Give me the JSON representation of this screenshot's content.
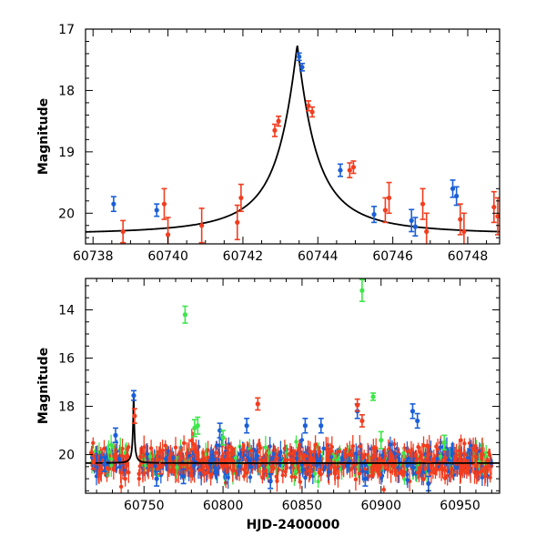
{
  "chart_data": [
    {
      "type": "scatter",
      "panel": "top",
      "title": "",
      "xlabel": "",
      "ylabel": "Magnitude",
      "xlim": [
        60737.8,
        60748.85
      ],
      "ylim": [
        20.5,
        17.0
      ],
      "y_inverted": true,
      "xticks": [
        60738,
        60740,
        60742,
        60744,
        60746,
        60748
      ],
      "xtick_labels": [
        "60738",
        "60740",
        "60742",
        "60744",
        "60746",
        "60748"
      ],
      "yticks": [
        17,
        18,
        19,
        20
      ],
      "ytick_labels": [
        "17",
        "18",
        "19",
        "20"
      ],
      "model_curve": {
        "name": "microlensing model",
        "color": "#000000",
        "t0": 60743.45,
        "peak_mag": 17.25,
        "base_mag": 20.35,
        "width": 0.55
      },
      "series": [
        {
          "name": "blue",
          "color": "#1a5fd8",
          "points": [
            {
              "x": 60738.55,
              "y": 19.85,
              "err": 0.12
            },
            {
              "x": 60739.7,
              "y": 19.95,
              "err": 0.1
            },
            {
              "x": 60743.5,
              "y": 17.45,
              "err": 0.06
            },
            {
              "x": 60743.58,
              "y": 17.62,
              "err": 0.06
            },
            {
              "x": 60744.6,
              "y": 19.3,
              "err": 0.1
            },
            {
              "x": 60745.5,
              "y": 20.02,
              "err": 0.13
            },
            {
              "x": 60746.5,
              "y": 20.12,
              "err": 0.18
            },
            {
              "x": 60746.6,
              "y": 20.22,
              "err": 0.15
            },
            {
              "x": 60747.6,
              "y": 19.6,
              "err": 0.14
            },
            {
              "x": 60747.7,
              "y": 19.72,
              "err": 0.15
            }
          ]
        },
        {
          "name": "red",
          "color": "#f23d1f",
          "points": [
            {
              "x": 60738.8,
              "y": 20.3,
              "err": 0.18
            },
            {
              "x": 60739.9,
              "y": 19.85,
              "err": 0.25
            },
            {
              "x": 60740.0,
              "y": 20.35,
              "err": 0.28
            },
            {
              "x": 60740.9,
              "y": 20.2,
              "err": 0.28
            },
            {
              "x": 60741.85,
              "y": 20.15,
              "err": 0.28
            },
            {
              "x": 60741.95,
              "y": 19.75,
              "err": 0.22
            },
            {
              "x": 60742.85,
              "y": 18.65,
              "err": 0.1
            },
            {
              "x": 60742.95,
              "y": 18.5,
              "err": 0.08
            },
            {
              "x": 60743.75,
              "y": 18.25,
              "err": 0.08
            },
            {
              "x": 60743.85,
              "y": 18.35,
              "err": 0.08
            },
            {
              "x": 60744.85,
              "y": 19.3,
              "err": 0.12
            },
            {
              "x": 60744.95,
              "y": 19.25,
              "err": 0.1
            },
            {
              "x": 60745.8,
              "y": 19.95,
              "err": 0.2
            },
            {
              "x": 60745.9,
              "y": 19.75,
              "err": 0.25
            },
            {
              "x": 60746.8,
              "y": 19.85,
              "err": 0.25
            },
            {
              "x": 60746.9,
              "y": 20.3,
              "err": 0.3
            },
            {
              "x": 60747.8,
              "y": 20.1,
              "err": 0.25
            },
            {
              "x": 60747.9,
              "y": 20.3,
              "err": 0.3
            },
            {
              "x": 60748.7,
              "y": 19.9,
              "err": 0.25
            },
            {
              "x": 60748.8,
              "y": 20.05,
              "err": 0.3
            }
          ]
        }
      ]
    },
    {
      "type": "scatter",
      "panel": "bottom",
      "title": "",
      "xlabel": "HJD-2400000",
      "ylabel": "Magnitude",
      "xlim": [
        60713,
        60975
      ],
      "ylim": [
        21.6,
        12.7
      ],
      "y_inverted": true,
      "xticks": [
        60750,
        60800,
        60850,
        60900,
        60950
      ],
      "xtick_labels": [
        "60750",
        "60800",
        "60850",
        "60900",
        "60950"
      ],
      "yticks": [
        14,
        16,
        18,
        20
      ],
      "ytick_labels": [
        "14",
        "16",
        "18",
        "20"
      ],
      "model_curve": {
        "name": "microlensing model",
        "color": "#000000",
        "t0": 60743.45,
        "peak_mag": 17.25,
        "base_mag": 20.35,
        "width": 0.55
      },
      "series": [
        {
          "name": "blue",
          "color": "#1a5fd8",
          "points": [
            {
              "x": 60725,
              "y": 20.4,
              "err": 0.3
            },
            {
              "x": 60732,
              "y": 19.2,
              "err": 0.3
            },
            {
              "x": 60743.5,
              "y": 17.55,
              "err": 0.2
            },
            {
              "x": 60758,
              "y": 21.0,
              "err": 0.3
            },
            {
              "x": 60775,
              "y": 20.9,
              "err": 0.3
            },
            {
              "x": 60798,
              "y": 19.0,
              "err": 0.3
            },
            {
              "x": 60815,
              "y": 18.8,
              "err": 0.3
            },
            {
              "x": 60830,
              "y": 21.1,
              "err": 0.3
            },
            {
              "x": 60852,
              "y": 18.8,
              "err": 0.3
            },
            {
              "x": 60862,
              "y": 18.8,
              "err": 0.3
            },
            {
              "x": 60885,
              "y": 18.2,
              "err": 0.3
            },
            {
              "x": 60890,
              "y": 21.0,
              "err": 0.3
            },
            {
              "x": 60920,
              "y": 18.2,
              "err": 0.3
            },
            {
              "x": 60923,
              "y": 18.6,
              "err": 0.3
            },
            {
              "x": 60930,
              "y": 21.2,
              "err": 0.3
            }
          ]
        },
        {
          "name": "green",
          "color": "#3ee64a",
          "points": [
            {
              "x": 60776,
              "y": 14.2,
              "err": 0.35
            },
            {
              "x": 60782,
              "y": 18.9,
              "err": 0.35
            },
            {
              "x": 60784,
              "y": 18.8,
              "err": 0.35
            },
            {
              "x": 60800,
              "y": 19.3,
              "err": 0.3
            },
            {
              "x": 60888,
              "y": 13.2,
              "err": 0.45
            },
            {
              "x": 60895,
              "y": 17.6,
              "err": 0.15
            },
            {
              "x": 60900,
              "y": 19.4,
              "err": 0.35
            },
            {
              "x": 60940,
              "y": 19.5,
              "err": 0.3
            }
          ]
        },
        {
          "name": "red",
          "color": "#f23d1f",
          "points": [
            {
              "x": 60718,
              "y": 20.3,
              "err": 0.3
            },
            {
              "x": 60744,
              "y": 18.4,
              "err": 0.3
            },
            {
              "x": 60760,
              "y": 20.5,
              "err": 0.3
            },
            {
              "x": 60822,
              "y": 17.9,
              "err": 0.25
            },
            {
              "x": 60885,
              "y": 17.95,
              "err": 0.25
            },
            {
              "x": 60888,
              "y": 18.6,
              "err": 0.25
            },
            {
              "x": 60930,
              "y": 20.0,
              "err": 0.3
            },
            {
              "x": 60960,
              "y": 20.1,
              "err": 0.3
            }
          ]
        }
      ],
      "dense_band": {
        "x_range": [
          60716,
          60970
        ],
        "center_mag": 20.3,
        "spread": 0.55,
        "colors": [
          "#f23d1f",
          "#1a5fd8",
          "#3ee64a"
        ]
      }
    }
  ]
}
